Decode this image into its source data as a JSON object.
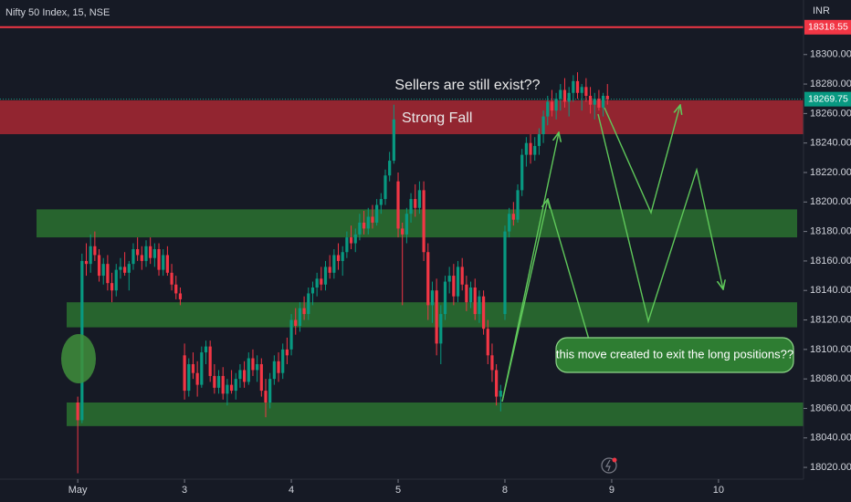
{
  "chart_data": {
    "type": "candlestick",
    "title": "Nifty 50 Index, 15, NSE",
    "y_axis_label": "INR",
    "up_color": "#089981",
    "down_color": "#f23645",
    "xlim": [
      -18.2,
      169.9
    ],
    "ylim": [
      18012,
      18337
    ],
    "xticks": [
      {
        "value": 0,
        "label": "May"
      },
      {
        "value": 25,
        "label": "3"
      },
      {
        "value": 50,
        "label": "4"
      },
      {
        "value": 75,
        "label": "5"
      },
      {
        "value": 100,
        "label": "8"
      },
      {
        "value": 125,
        "label": "9"
      },
      {
        "value": 150,
        "label": "10"
      }
    ],
    "yticks": [
      {
        "value": 18020,
        "label": "18020.00"
      },
      {
        "value": 18040,
        "label": "18040.00"
      },
      {
        "value": 18060,
        "label": "18060.00"
      },
      {
        "value": 18080,
        "label": "18080.00"
      },
      {
        "value": 18100,
        "label": "18100.00"
      },
      {
        "value": 18120,
        "label": "18120.00"
      },
      {
        "value": 18140,
        "label": "18140.00"
      },
      {
        "value": 18160,
        "label": "18160.00"
      },
      {
        "value": 18180,
        "label": "18180.00"
      },
      {
        "value": 18200,
        "label": "18200.00"
      },
      {
        "value": 18220,
        "label": "18220.00"
      },
      {
        "value": 18240,
        "label": "18240.00"
      },
      {
        "value": 18260,
        "label": "18260.00"
      },
      {
        "value": 18280,
        "label": "18280.00"
      },
      {
        "value": 18300,
        "label": "18300.00"
      }
    ],
    "price_lines": [
      {
        "value": 18318.55,
        "color": "#f23645"
      },
      {
        "value": 18269.75,
        "color": "#089981"
      }
    ],
    "zones": [
      {
        "low": 18246,
        "high": 18269,
        "color": "#b22833"
      },
      {
        "low": 18176,
        "high": 18195,
        "color": "#2e7d32"
      },
      {
        "low": 18115,
        "high": 18132,
        "color": "#2e7d32"
      },
      {
        "low": 18048,
        "high": 18064,
        "color": "#2e7d32"
      }
    ],
    "annotations": [
      "Sellers are still exist??",
      "Strong Fall",
      "this move created to exit the long positions??"
    ],
    "x": [
      0,
      1,
      2,
      3,
      4,
      5,
      6,
      7,
      8,
      9,
      10,
      11,
      12,
      13,
      14,
      15,
      16,
      17,
      18,
      19,
      20,
      21,
      22,
      23,
      24,
      25,
      26,
      27,
      28,
      29,
      30,
      31,
      32,
      33,
      34,
      35,
      36,
      37,
      38,
      39,
      40,
      41,
      42,
      43,
      44,
      45,
      46,
      47,
      48,
      49,
      50,
      51,
      52,
      53,
      54,
      55,
      56,
      57,
      58,
      59,
      60,
      61,
      62,
      63,
      64,
      65,
      66,
      67,
      68,
      69,
      70,
      71,
      72,
      73,
      74,
      75,
      76,
      77,
      78,
      79,
      80,
      81,
      82,
      83,
      84,
      85,
      86,
      87,
      88,
      89,
      90,
      91,
      92,
      93,
      94,
      95,
      96,
      97,
      98,
      99,
      100,
      101,
      102,
      103,
      104,
      105,
      106,
      107,
      108,
      109,
      110,
      111,
      112,
      113,
      114,
      115,
      116,
      117,
      118,
      119,
      120,
      121,
      122,
      123,
      124
    ],
    "ohlc": [
      [
        18064,
        18068,
        18016,
        18052
      ],
      [
        18052,
        18165,
        18050,
        18160
      ],
      [
        18160,
        18172,
        18150,
        18158
      ],
      [
        18158,
        18178,
        18152,
        18170
      ],
      [
        18170,
        18180,
        18160,
        18164
      ],
      [
        18164,
        18168,
        18146,
        18150
      ],
      [
        18150,
        18162,
        18144,
        18158
      ],
      [
        18158,
        18164,
        18140,
        18145
      ],
      [
        18145,
        18152,
        18132,
        18140
      ],
      [
        18140,
        18158,
        18136,
        18154
      ],
      [
        18154,
        18162,
        18148,
        18156
      ],
      [
        18156,
        18166,
        18150,
        18152
      ],
      [
        18152,
        18160,
        18140,
        18158
      ],
      [
        18158,
        18172,
        18154,
        18168
      ],
      [
        18168,
        18176,
        18160,
        18164
      ],
      [
        18164,
        18170,
        18154,
        18160
      ],
      [
        18160,
        18174,
        18156,
        18170
      ],
      [
        18170,
        18176,
        18158,
        18162
      ],
      [
        18162,
        18172,
        18156,
        18168
      ],
      [
        18168,
        18172,
        18150,
        18154
      ],
      [
        18154,
        18168,
        18150,
        18164
      ],
      [
        18164,
        18170,
        18150,
        18152
      ],
      [
        18152,
        18158,
        18140,
        18144
      ],
      [
        18144,
        18150,
        18134,
        18138
      ],
      [
        18138,
        18142,
        18130,
        18134
      ],
      [
        18096,
        18104,
        18066,
        18072
      ],
      [
        18072,
        18094,
        18068,
        18090
      ],
      [
        18090,
        18098,
        18080,
        18084
      ],
      [
        18084,
        18092,
        18068,
        18076
      ],
      [
        18076,
        18102,
        18074,
        18098
      ],
      [
        18098,
        18106,
        18090,
        18102
      ],
      [
        18102,
        18106,
        18078,
        18082
      ],
      [
        18082,
        18090,
        18070,
        18074
      ],
      [
        18074,
        18086,
        18070,
        18082
      ],
      [
        18082,
        18088,
        18066,
        18070
      ],
      [
        18070,
        18080,
        18062,
        18076
      ],
      [
        18076,
        18086,
        18070,
        18072
      ],
      [
        18072,
        18084,
        18066,
        18080
      ],
      [
        18080,
        18090,
        18074,
        18086
      ],
      [
        18086,
        18092,
        18074,
        18078
      ],
      [
        18078,
        18098,
        18076,
        18094
      ],
      [
        18094,
        18100,
        18082,
        18086
      ],
      [
        18086,
        18096,
        18078,
        18090
      ],
      [
        18090,
        18094,
        18068,
        18072
      ],
      [
        18072,
        18080,
        18054,
        18064
      ],
      [
        18064,
        18084,
        18060,
        18080
      ],
      [
        18080,
        18096,
        18076,
        18092
      ],
      [
        18092,
        18098,
        18078,
        18084
      ],
      [
        18084,
        18104,
        18080,
        18100
      ],
      [
        18100,
        18108,
        18090,
        18096
      ],
      [
        18100,
        18124,
        18096,
        18120
      ],
      [
        18120,
        18128,
        18110,
        18116
      ],
      [
        18116,
        18132,
        18112,
        18128
      ],
      [
        18128,
        18136,
        18120,
        18124
      ],
      [
        18124,
        18142,
        18120,
        18138
      ],
      [
        18138,
        18146,
        18130,
        18142
      ],
      [
        18142,
        18152,
        18136,
        18148
      ],
      [
        18148,
        18156,
        18140,
        18144
      ],
      [
        18144,
        18160,
        18140,
        18156
      ],
      [
        18156,
        18164,
        18148,
        18152
      ],
      [
        18152,
        18168,
        18148,
        18164
      ],
      [
        18164,
        18172,
        18154,
        18160
      ],
      [
        18160,
        18170,
        18150,
        18166
      ],
      [
        18166,
        18180,
        18162,
        18176
      ],
      [
        18176,
        18184,
        18168,
        18172
      ],
      [
        18172,
        18182,
        18166,
        18178
      ],
      [
        18178,
        18192,
        18174,
        18186
      ],
      [
        18186,
        18194,
        18178,
        18182
      ],
      [
        18182,
        18196,
        18178,
        18190
      ],
      [
        18190,
        18198,
        18182,
        18186
      ],
      [
        18186,
        18202,
        18184,
        18198
      ],
      [
        18198,
        18206,
        18192,
        18202
      ],
      [
        18202,
        18222,
        18198,
        18218
      ],
      [
        18218,
        18234,
        18214,
        18228
      ],
      [
        18228,
        18266,
        18226,
        18256
      ],
      [
        18214,
        18220,
        18176,
        18182
      ],
      [
        18182,
        18186,
        18130,
        18178
      ],
      [
        18178,
        18196,
        18172,
        18192
      ],
      [
        18192,
        18206,
        18186,
        18202
      ],
      [
        18202,
        18212,
        18190,
        18196
      ],
      [
        18196,
        18214,
        18192,
        18208
      ],
      [
        18208,
        18214,
        18160,
        18166
      ],
      [
        18166,
        18172,
        18120,
        18130
      ],
      [
        18130,
        18146,
        18118,
        18140
      ],
      [
        18140,
        18148,
        18096,
        18104
      ],
      [
        18104,
        18130,
        18090,
        18124
      ],
      [
        18124,
        18150,
        18120,
        18146
      ],
      [
        18146,
        18156,
        18138,
        18150
      ],
      [
        18150,
        18158,
        18130,
        18136
      ],
      [
        18136,
        18160,
        18132,
        18156
      ],
      [
        18156,
        18162,
        18140,
        18144
      ],
      [
        18144,
        18150,
        18126,
        18132
      ],
      [
        18132,
        18146,
        18128,
        18142
      ],
      [
        18142,
        18148,
        18120,
        18124
      ],
      [
        18124,
        18140,
        18118,
        18136
      ],
      [
        18136,
        18140,
        18110,
        18114
      ],
      [
        18114,
        18120,
        18090,
        18096
      ],
      [
        18096,
        18104,
        18078,
        18086
      ],
      [
        18086,
        18090,
        18062,
        18068
      ],
      [
        18068,
        18076,
        18058,
        18072
      ],
      [
        18124,
        18184,
        18120,
        18180
      ],
      [
        18180,
        18196,
        18176,
        18192
      ],
      [
        18192,
        18200,
        18184,
        18188
      ],
      [
        18188,
        18212,
        18186,
        18208
      ],
      [
        18208,
        18236,
        18204,
        18232
      ],
      [
        18232,
        18244,
        18224,
        18240
      ],
      [
        18240,
        18246,
        18226,
        18232
      ],
      [
        18232,
        18244,
        18228,
        18238
      ],
      [
        18238,
        18250,
        18232,
        18246
      ],
      [
        18246,
        18262,
        18240,
        18258
      ],
      [
        18258,
        18272,
        18252,
        18268
      ],
      [
        18268,
        18276,
        18258,
        18262
      ],
      [
        18262,
        18274,
        18256,
        18270
      ],
      [
        18270,
        18280,
        18262,
        18276
      ],
      [
        18276,
        18284,
        18264,
        18268
      ],
      [
        18268,
        18278,
        18258,
        18274
      ],
      [
        18274,
        18286,
        18268,
        18282
      ],
      [
        18282,
        18288,
        18270,
        18274
      ],
      [
        18274,
        18280,
        18262,
        18278
      ],
      [
        18278,
        18284,
        18268,
        18272
      ],
      [
        18272,
        18278,
        18260,
        18266
      ],
      [
        18266,
        18274,
        18256,
        18270
      ],
      [
        18270,
        18276,
        18262,
        18264
      ],
      [
        18264,
        18274,
        18258,
        18272
      ],
      [
        18272,
        18280,
        18266,
        18269.75
      ]
    ]
  }
}
